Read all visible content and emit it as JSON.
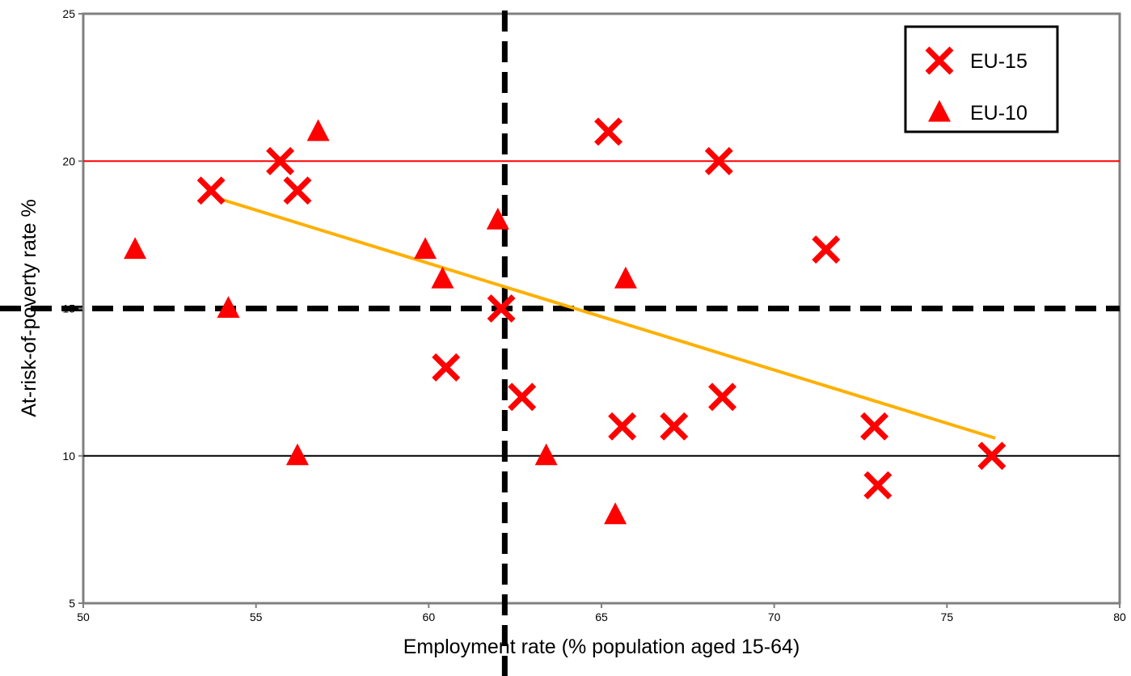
{
  "chart_data": {
    "type": "scatter",
    "xlabel": "Employment rate (% population aged 15-64)",
    "ylabel": "At-risk-of-poverty rate %",
    "xlim": [
      50,
      80
    ],
    "ylim": [
      5,
      25
    ],
    "x_ticks": [
      "50",
      "55",
      "60",
      "65",
      "70",
      "75",
      "80"
    ],
    "y_ticks": [
      "5",
      "10",
      "15",
      "20",
      "25"
    ],
    "grid": false,
    "legend_position": "top-right",
    "series": [
      {
        "name": "EU-15",
        "marker": "x",
        "color": "#ff0000",
        "points": [
          {
            "x": 53.7,
            "y": 19
          },
          {
            "x": 55.7,
            "y": 20
          },
          {
            "x": 56.2,
            "y": 19
          },
          {
            "x": 60.5,
            "y": 13
          },
          {
            "x": 62.1,
            "y": 15
          },
          {
            "x": 62.7,
            "y": 12
          },
          {
            "x": 65.2,
            "y": 21
          },
          {
            "x": 65.6,
            "y": 11
          },
          {
            "x": 67.1,
            "y": 11
          },
          {
            "x": 68.4,
            "y": 20
          },
          {
            "x": 68.5,
            "y": 12
          },
          {
            "x": 71.5,
            "y": 17
          },
          {
            "x": 72.9,
            "y": 11
          },
          {
            "x": 73.0,
            "y": 9
          },
          {
            "x": 76.3,
            "y": 10
          }
        ]
      },
      {
        "name": "EU-10",
        "marker": "triangle",
        "color": "#ff0000",
        "points": [
          {
            "x": 51.5,
            "y": 17
          },
          {
            "x": 54.2,
            "y": 15
          },
          {
            "x": 56.2,
            "y": 10
          },
          {
            "x": 56.8,
            "y": 21
          },
          {
            "x": 59.9,
            "y": 17
          },
          {
            "x": 60.4,
            "y": 16
          },
          {
            "x": 62.0,
            "y": 18
          },
          {
            "x": 63.4,
            "y": 10
          },
          {
            "x": 65.4,
            "y": 8
          },
          {
            "x": 65.7,
            "y": 16
          }
        ]
      }
    ],
    "reference_lines": [
      {
        "orientation": "horizontal",
        "value": 20,
        "color": "#ff0000",
        "style": "solid"
      },
      {
        "orientation": "horizontal",
        "value": 10,
        "color": "#000000",
        "style": "solid"
      },
      {
        "orientation": "horizontal",
        "value": 15,
        "color": "#000000",
        "style": "dashed"
      },
      {
        "orientation": "vertical",
        "value": 62.2,
        "color": "#000000",
        "style": "dashed"
      }
    ],
    "trendline": {
      "color": "#ffb000",
      "from": {
        "x": 54.0,
        "y": 18.7
      },
      "to": {
        "x": 76.4,
        "y": 10.6
      }
    }
  }
}
